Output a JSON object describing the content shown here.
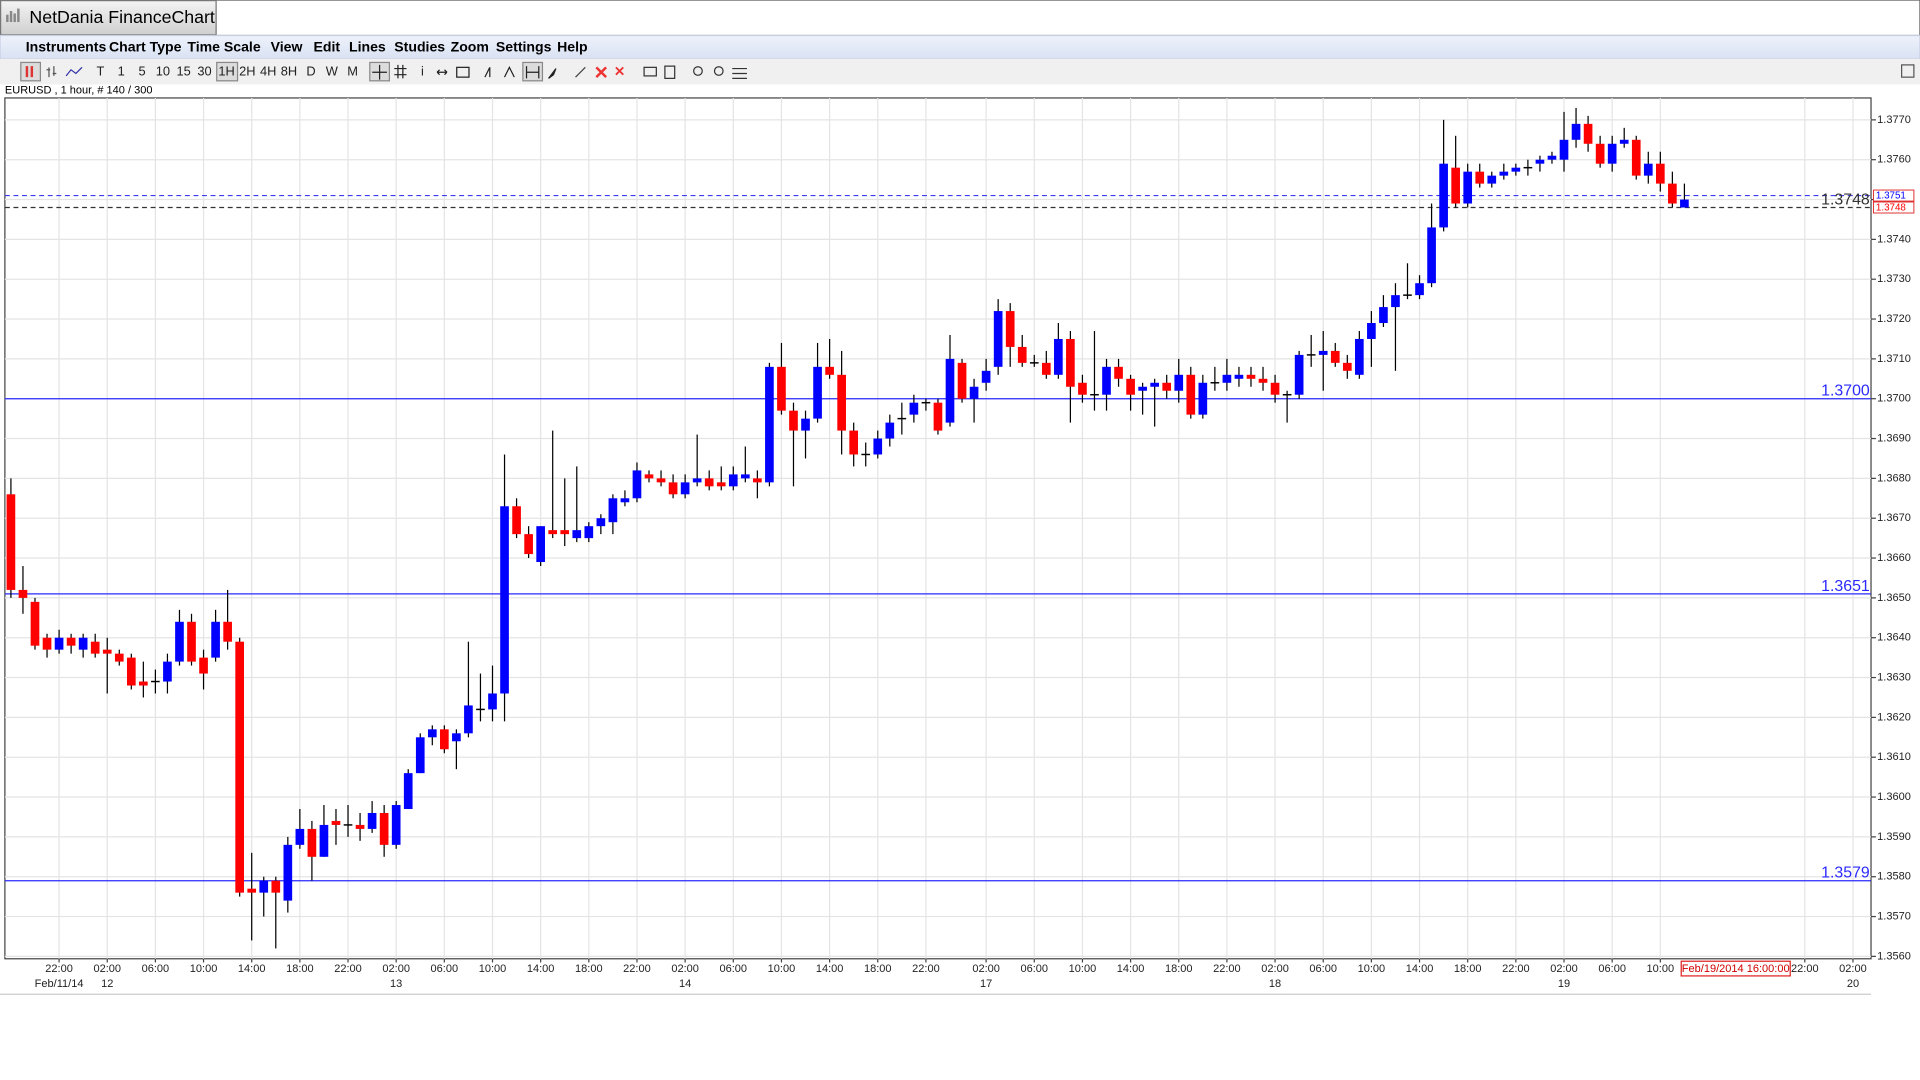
{
  "window": {
    "title": "NetDania FinanceChart"
  },
  "menu": [
    "Instruments",
    "Chart Type",
    "Time Scale",
    "View",
    "Edit",
    "Lines",
    "Studies",
    "Zoom",
    "Settings",
    "Help"
  ],
  "toolbar": {
    "periods": [
      "T",
      "1",
      "5",
      "10",
      "15",
      "30",
      "1H",
      "2H",
      "4H",
      "8H",
      "D",
      "W",
      "M"
    ],
    "info": "i"
  },
  "chart_data": {
    "type": "candlestick",
    "instrument_label": "EURUSD , 1 hour, # 140 / 300",
    "open": [
      1.3676,
      1.3652,
      1.3649,
      1.364,
      1.3637,
      1.364,
      1.3637,
      1.3639,
      1.3637,
      1.3636,
      1.3635,
      1.3629,
      1.3629,
      1.3629,
      1.3634,
      1.3644,
      1.3635,
      1.3635,
      1.3644,
      1.3639,
      1.3577,
      1.3576,
      1.3579,
      1.3574,
      1.3588,
      1.3592,
      1.3585,
      1.3594,
      1.3593,
      1.3593,
      1.3592,
      1.3596,
      1.3588,
      1.3597,
      1.3606,
      1.3615,
      1.3617,
      1.3614,
      1.3616,
      1.3622,
      1.3622,
      1.3626,
      1.3673,
      1.3666,
      1.3659,
      1.3667,
      1.3667,
      1.3665,
      1.3665,
      1.3668,
      1.3669,
      1.3674,
      1.3675,
      1.3681,
      1.368,
      1.3679,
      1.3676,
      1.3679,
      1.368,
      1.3679,
      1.3678,
      1.368,
      1.368,
      1.3679,
      1.3708,
      1.3697,
      1.3692,
      1.3695,
      1.3708,
      1.3706,
      1.3692,
      1.3686,
      1.3686,
      1.369,
      1.3695,
      1.3696,
      1.3699,
      1.3699,
      1.3694,
      1.3709,
      1.37,
      1.3704,
      1.3708,
      1.3722,
      1.3713,
      1.3709,
      1.3709,
      1.3706,
      1.3715,
      1.3704,
      1.3701,
      1.3701,
      1.3708,
      1.3705,
      1.3702,
      1.3703,
      1.3704,
      1.3702,
      1.3706,
      1.3696,
      1.3704,
      1.3704,
      1.3705,
      1.3706,
      1.3705,
      1.3704,
      1.3701,
      1.3701,
      1.3711,
      1.3711,
      1.3712,
      1.3709,
      1.3706,
      1.3715,
      1.3719,
      1.3723,
      1.3726,
      1.3726,
      1.3729,
      1.3743,
      1.3758,
      1.3749,
      1.3757,
      1.3754,
      1.3756,
      1.3757,
      1.3758,
      1.3759,
      1.376,
      1.376,
      1.3765,
      1.3769,
      1.3764,
      1.3759,
      1.3764,
      1.3765,
      1.3756,
      1.3759,
      1.3754,
      1.3748
    ],
    "high": [
      1.368,
      1.3658,
      1.365,
      1.3641,
      1.3642,
      1.3641,
      1.3641,
      1.3641,
      1.364,
      1.3637,
      1.3636,
      1.3634,
      1.3632,
      1.3636,
      1.3647,
      1.3646,
      1.3637,
      1.3647,
      1.3652,
      1.364,
      1.3586,
      1.358,
      1.358,
      1.359,
      1.3597,
      1.3594,
      1.3598,
      1.3597,
      1.3598,
      1.3596,
      1.3599,
      1.3598,
      1.3599,
      1.3607,
      1.3616,
      1.3618,
      1.3618,
      1.3617,
      1.3639,
      1.3631,
      1.3633,
      1.3686,
      1.3675,
      1.3668,
      1.3668,
      1.3692,
      1.368,
      1.3683,
      1.3669,
      1.3671,
      1.3676,
      1.3677,
      1.3684,
      1.3682,
      1.3682,
      1.3681,
      1.3681,
      1.3691,
      1.3682,
      1.3683,
      1.3683,
      1.3688,
      1.3682,
      1.3709,
      1.3714,
      1.3699,
      1.3697,
      1.3714,
      1.3715,
      1.3712,
      1.3694,
      1.3689,
      1.3692,
      1.3696,
      1.3699,
      1.3701,
      1.37,
      1.37,
      1.3716,
      1.371,
      1.3705,
      1.371,
      1.3725,
      1.3724,
      1.3716,
      1.3711,
      1.3712,
      1.3719,
      1.3717,
      1.3706,
      1.3717,
      1.371,
      1.371,
      1.3706,
      1.3704,
      1.3705,
      1.3706,
      1.371,
      1.3708,
      1.3706,
      1.3708,
      1.371,
      1.3708,
      1.3708,
      1.3708,
      1.3706,
      1.3702,
      1.3712,
      1.3716,
      1.3717,
      1.3714,
      1.3711,
      1.3717,
      1.3722,
      1.3726,
      1.3729,
      1.3734,
      1.3731,
      1.3749,
      1.377,
      1.3766,
      1.3759,
      1.3759,
      1.3757,
      1.3759,
      1.3759,
      1.376,
      1.3761,
      1.3762,
      1.3772,
      1.3773,
      1.3771,
      1.3766,
      1.3766,
      1.3768,
      1.3766,
      1.3762,
      1.3762,
      1.3757,
      1.3754
    ],
    "low": [
      1.365,
      1.3646,
      1.3637,
      1.3635,
      1.3636,
      1.3636,
      1.3635,
      1.3635,
      1.3626,
      1.3633,
      1.3627,
      1.3625,
      1.3626,
      1.3626,
      1.3633,
      1.3633,
      1.3627,
      1.3634,
      1.3637,
      1.3575,
      1.3564,
      1.357,
      1.3562,
      1.3571,
      1.3587,
      1.3579,
      1.3585,
      1.3588,
      1.359,
      1.3589,
      1.3591,
      1.3585,
      1.3587,
      1.3597,
      1.3606,
      1.3613,
      1.3611,
      1.3607,
      1.3615,
      1.3619,
      1.3619,
      1.3619,
      1.3665,
      1.366,
      1.3658,
      1.3665,
      1.3663,
      1.3664,
      1.3664,
      1.3666,
      1.3666,
      1.3673,
      1.3674,
      1.3679,
      1.3678,
      1.3675,
      1.3675,
      1.3678,
      1.3677,
      1.3677,
      1.3677,
      1.3679,
      1.3675,
      1.3678,
      1.3696,
      1.3678,
      1.3685,
      1.3694,
      1.3705,
      1.3686,
      1.3683,
      1.3683,
      1.3685,
      1.3688,
      1.3691,
      1.3694,
      1.3697,
      1.3691,
      1.3693,
      1.3699,
      1.3694,
      1.3702,
      1.3706,
      1.3708,
      1.3708,
      1.3708,
      1.3705,
      1.3705,
      1.3694,
      1.3699,
      1.3697,
      1.3697,
      1.3703,
      1.3697,
      1.3696,
      1.3693,
      1.37,
      1.3699,
      1.3695,
      1.3695,
      1.3702,
      1.3702,
      1.3703,
      1.3703,
      1.3702,
      1.3699,
      1.3694,
      1.37,
      1.3708,
      1.3702,
      1.3708,
      1.3705,
      1.3705,
      1.3708,
      1.3718,
      1.3707,
      1.3725,
      1.3725,
      1.3728,
      1.3742,
      1.3748,
      1.3748,
      1.3753,
      1.3753,
      1.3755,
      1.3756,
      1.3756,
      1.3757,
      1.3759,
      1.3757,
      1.3763,
      1.3762,
      1.3758,
      1.3757,
      1.3763,
      1.3755,
      1.3754,
      1.3752,
      1.3748,
      1.3748
    ],
    "close": [
      1.3652,
      1.365,
      1.3638,
      1.3637,
      1.364,
      1.3638,
      1.364,
      1.3636,
      1.3636,
      1.3634,
      1.3628,
      1.3628,
      1.3629,
      1.3634,
      1.3644,
      1.3634,
      1.3631,
      1.3644,
      1.3639,
      1.3576,
      1.3576,
      1.3579,
      1.3576,
      1.3588,
      1.3592,
      1.3585,
      1.3593,
      1.3593,
      1.3593,
      1.3592,
      1.3596,
      1.3588,
      1.3598,
      1.3606,
      1.3615,
      1.3617,
      1.3612,
      1.3616,
      1.3623,
      1.3622,
      1.3626,
      1.3673,
      1.3666,
      1.3661,
      1.3668,
      1.3666,
      1.3666,
      1.3667,
      1.3668,
      1.367,
      1.3675,
      1.3675,
      1.3682,
      1.368,
      1.3679,
      1.3676,
      1.3679,
      1.368,
      1.3678,
      1.3678,
      1.3681,
      1.3681,
      1.3679,
      1.3708,
      1.3697,
      1.3692,
      1.3695,
      1.3708,
      1.3706,
      1.3692,
      1.3686,
      1.3686,
      1.369,
      1.3694,
      1.3695,
      1.3699,
      1.3699,
      1.3692,
      1.371,
      1.37,
      1.3703,
      1.3707,
      1.3722,
      1.3713,
      1.3709,
      1.3709,
      1.3706,
      1.3715,
      1.3703,
      1.3701,
      1.3701,
      1.3708,
      1.3705,
      1.3701,
      1.3703,
      1.3704,
      1.3702,
      1.3706,
      1.3696,
      1.3704,
      1.3704,
      1.3706,
      1.3706,
      1.3705,
      1.3704,
      1.3701,
      1.3701,
      1.3711,
      1.3711,
      1.3712,
      1.3709,
      1.3707,
      1.3715,
      1.3719,
      1.3723,
      1.3726,
      1.3726,
      1.3729,
      1.3743,
      1.3759,
      1.3749,
      1.3757,
      1.3754,
      1.3756,
      1.3757,
      1.3758,
      1.3758,
      1.376,
      1.3761,
      1.3765,
      1.3769,
      1.3764,
      1.3759,
      1.3764,
      1.3765,
      1.3756,
      1.3759,
      1.3754,
      1.3749,
      1.375
    ],
    "up_color": "#0000ff",
    "down_color": "#ff0000",
    "xlim": [
      -0.5,
      154.5
    ],
    "xticks": [
      {
        "value": 4,
        "label": "22:00"
      },
      {
        "value": 8,
        "label": "02:00"
      },
      {
        "value": 12,
        "label": "06:00"
      },
      {
        "value": 16,
        "label": "10:00"
      },
      {
        "value": 20,
        "label": "14:00"
      },
      {
        "value": 24,
        "label": "18:00"
      },
      {
        "value": 28,
        "label": "22:00"
      },
      {
        "value": 32,
        "label": "02:00"
      },
      {
        "value": 36,
        "label": "06:00"
      },
      {
        "value": 40,
        "label": "10:00"
      },
      {
        "value": 44,
        "label": "14:00"
      },
      {
        "value": 48,
        "label": "18:00"
      },
      {
        "value": 52,
        "label": "22:00"
      },
      {
        "value": 56,
        "label": "02:00"
      },
      {
        "value": 60,
        "label": "06:00"
      },
      {
        "value": 64,
        "label": "10:00"
      },
      {
        "value": 68,
        "label": "14:00"
      },
      {
        "value": 72,
        "label": "18:00"
      },
      {
        "value": 76,
        "label": "22:00"
      },
      {
        "value": 81,
        "label": "02:00"
      },
      {
        "value": 85,
        "label": "06:00"
      },
      {
        "value": 89,
        "label": "10:00"
      },
      {
        "value": 93,
        "label": "14:00"
      },
      {
        "value": 97,
        "label": "18:00"
      },
      {
        "value": 101,
        "label": "22:00"
      },
      {
        "value": 105,
        "label": "02:00"
      },
      {
        "value": 109,
        "label": "06:00"
      },
      {
        "value": 113,
        "label": "10:00"
      },
      {
        "value": 117,
        "label": "14:00"
      },
      {
        "value": 121,
        "label": "18:00"
      },
      {
        "value": 125,
        "label": "22:00"
      },
      {
        "value": 129,
        "label": "02:00"
      },
      {
        "value": 133,
        "label": "06:00"
      },
      {
        "value": 137,
        "label": "10:00"
      },
      {
        "value": 149,
        "label": "22:00"
      },
      {
        "value": 153,
        "label": "02:00"
      }
    ],
    "date_labels": [
      {
        "value": 4,
        "label": "Feb/11/14"
      },
      {
        "value": 8,
        "label": "12"
      },
      {
        "value": 32,
        "label": "13"
      },
      {
        "value": 56,
        "label": "14"
      },
      {
        "value": 81,
        "label": "17"
      },
      {
        "value": 105,
        "label": "18"
      },
      {
        "value": 129,
        "label": "19"
      },
      {
        "value": 153,
        "label": "20"
      }
    ],
    "ylim": [
      1.35594,
      1.37755
    ],
    "yticks": [
      {
        "value": 1.356,
        "label": "1.3560"
      },
      {
        "value": 1.357,
        "label": "1.3570"
      },
      {
        "value": 1.358,
        "label": "1.3580"
      },
      {
        "value": 1.359,
        "label": "1.3590"
      },
      {
        "value": 1.36,
        "label": "1.3600"
      },
      {
        "value": 1.361,
        "label": "1.3610"
      },
      {
        "value": 1.362,
        "label": "1.3620"
      },
      {
        "value": 1.363,
        "label": "1.3630"
      },
      {
        "value": 1.364,
        "label": "1.3640"
      },
      {
        "value": 1.365,
        "label": "1.3650"
      },
      {
        "value": 1.366,
        "label": "1.3660"
      },
      {
        "value": 1.367,
        "label": "1.3670"
      },
      {
        "value": 1.368,
        "label": "1.3680"
      },
      {
        "value": 1.369,
        "label": "1.3690"
      },
      {
        "value": 1.37,
        "label": "1.3700"
      },
      {
        "value": 1.371,
        "label": "1.3710"
      },
      {
        "value": 1.372,
        "label": "1.3720"
      },
      {
        "value": 1.373,
        "label": "1.3730"
      },
      {
        "value": 1.374,
        "label": "1.3740"
      },
      {
        "value": 1.375,
        "label": "1.3750"
      },
      {
        "value": 1.376,
        "label": "1.3760"
      },
      {
        "value": 1.377,
        "label": "1.3770"
      }
    ],
    "grid": true,
    "levels": [
      {
        "value": 1.3751,
        "label": "1.3751",
        "color": "#3a3af0",
        "style": "dashed",
        "plot_label": false,
        "axis_box": true,
        "box_text_color": "#0000ff"
      },
      {
        "value": 1.3748,
        "label": "1.3748",
        "color": "#333333",
        "style": "dashed",
        "plot_label": true,
        "axis_box": true,
        "box_text_color": "#ff0000"
      },
      {
        "value": 1.37,
        "label": "1.3700",
        "color": "#2a2aff",
        "style": "solid",
        "plot_label": true,
        "axis_box": false,
        "box_text_color": "#0000ff"
      },
      {
        "value": 1.3651,
        "label": "1.3651",
        "color": "#2a2aff",
        "style": "solid",
        "plot_label": true,
        "axis_box": false,
        "box_text_color": "#0000ff"
      },
      {
        "value": 1.3579,
        "label": "1.3579",
        "color": "#2a2aff",
        "style": "solid",
        "plot_label": true,
        "axis_box": false,
        "box_text_color": "#0000ff"
      }
    ],
    "cursor_label": "Feb/19/2014 16:00:00"
  }
}
